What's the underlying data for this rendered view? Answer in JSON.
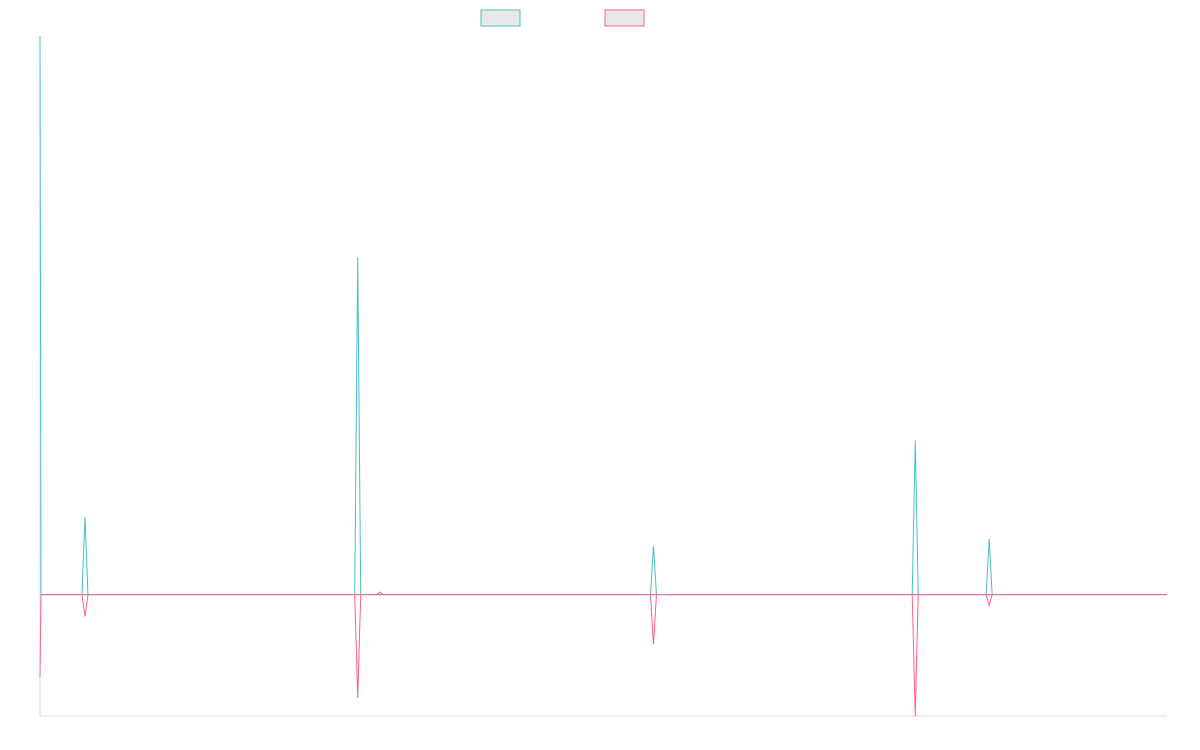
{
  "chart_data": {
    "type": "line",
    "title": "",
    "xlabel": "",
    "ylabel": "",
    "x": [
      0,
      1,
      8,
      15,
      22,
      29,
      36,
      43,
      50,
      57,
      64,
      71,
      78,
      85,
      92,
      99,
      106,
      113,
      120,
      127,
      134,
      141,
      148,
      155,
      162,
      169,
      176,
      183,
      190,
      197,
      204,
      211,
      218,
      225,
      232,
      239,
      246,
      253,
      260,
      267,
      274,
      281,
      288,
      295,
      302,
      309,
      316,
      323,
      330,
      337,
      344,
      351,
      358,
      365,
      372,
      379,
      386,
      393,
      400,
      407,
      414,
      421,
      428,
      435,
      442,
      449,
      456,
      463,
      470,
      477,
      484,
      491,
      498,
      505,
      512,
      519,
      526,
      533,
      540,
      547,
      554,
      561,
      568,
      575,
      582,
      589,
      596,
      603,
      610,
      617,
      624,
      631,
      638,
      645,
      652,
      659,
      666,
      673,
      680,
      687,
      694,
      701,
      708,
      715,
      722,
      729,
      736,
      743,
      750,
      757,
      764,
      771,
      778,
      785,
      792,
      799,
      806,
      813,
      820,
      827,
      834,
      841,
      848,
      855,
      862,
      869,
      876,
      883,
      890,
      897,
      904,
      911,
      918,
      925,
      932,
      939,
      946,
      953,
      960,
      967,
      974,
      981,
      988,
      995,
      1002,
      1009,
      1016,
      1023,
      1030,
      1037,
      1044,
      1051,
      1058,
      1065,
      1072,
      1079,
      1086,
      1093,
      1100,
      1107,
      1114,
      1121,
      1128
    ],
    "xlim": [
      0,
      1128
    ],
    "ylim": [
      -1000,
      4600
    ],
    "series": [
      {
        "color": "#4bc0c0",
        "values": [
          4600,
          0,
          0,
          0,
          0,
          0,
          0,
          0,
          0,
          0,
          0,
          0,
          0,
          0,
          0,
          0,
          0,
          0,
          0,
          0,
          0,
          0,
          0,
          0,
          0,
          0,
          0,
          0,
          0,
          0,
          0,
          0,
          0,
          0,
          0,
          0,
          0,
          0,
          0,
          0,
          0,
          0,
          0,
          0,
          0,
          0,
          0,
          0,
          0,
          0,
          0,
          0,
          0,
          0,
          0,
          0,
          0,
          0,
          0,
          0,
          0,
          0,
          0,
          0,
          0,
          0,
          0,
          0,
          0,
          0,
          0,
          0,
          0,
          0,
          0,
          0,
          0,
          0,
          0,
          0,
          0,
          0,
          0,
          0,
          0,
          0,
          0,
          0,
          0,
          0,
          0,
          0,
          0,
          0,
          0,
          0,
          0,
          0,
          0,
          0,
          0,
          0,
          0,
          0,
          0,
          0,
          0,
          0,
          0,
          0,
          0,
          0,
          0,
          0,
          0,
          0,
          0,
          0,
          0,
          0,
          0,
          0,
          0,
          0,
          0,
          0,
          0,
          0,
          0,
          0,
          0,
          0,
          0,
          0,
          0,
          0,
          0,
          0,
          0,
          0,
          0,
          0,
          0,
          0,
          0,
          0,
          0,
          0,
          0,
          0,
          0,
          0,
          0,
          0,
          0,
          0,
          0,
          0,
          0,
          0,
          0,
          0,
          0
        ]
      },
      {
        "color": "#ff6384",
        "values": [
          -680,
          0,
          0,
          0,
          0,
          0,
          0,
          0,
          0,
          0,
          0,
          0,
          0,
          0,
          0,
          0,
          0,
          0,
          0,
          0,
          0,
          0,
          0,
          0,
          0,
          0,
          0,
          0,
          0,
          0,
          0,
          0,
          0,
          0,
          0,
          0,
          0,
          0,
          0,
          0,
          0,
          0,
          0,
          0,
          0,
          0,
          0,
          0,
          0,
          0,
          0,
          0,
          0,
          0,
          0,
          0,
          0,
          0,
          0,
          0,
          0,
          0,
          0,
          0,
          0,
          0,
          0,
          0,
          0,
          0,
          0,
          0,
          0,
          0,
          0,
          0,
          0,
          0,
          0,
          0,
          0,
          0,
          0,
          0,
          0,
          0,
          0,
          0,
          0,
          0,
          0,
          0,
          0,
          0,
          0,
          0,
          0,
          0,
          0,
          0,
          0,
          0,
          0,
          0,
          0,
          0,
          0,
          0,
          0,
          0,
          0,
          0,
          0,
          0,
          0,
          0,
          0,
          0,
          0,
          0,
          0,
          0,
          0,
          0,
          0,
          0,
          0,
          0,
          0,
          0,
          0,
          0,
          0,
          0,
          0,
          0,
          0,
          0,
          0,
          0,
          0,
          0,
          0,
          0,
          0,
          0,
          0,
          0,
          0,
          0,
          0,
          0,
          0,
          0,
          0,
          0,
          0,
          0,
          0,
          0,
          0,
          0,
          0
        ]
      }
    ],
    "events": [
      {
        "x": 45,
        "teal": 640,
        "pink": -180
      },
      {
        "x": 318,
        "teal": 2780,
        "pink": -850
      },
      {
        "x": 340,
        "teal": 20,
        "pink": 20
      },
      {
        "x": 614,
        "teal": 400,
        "pink": -410
      },
      {
        "x": 876,
        "teal": 1270,
        "pink": -1000
      },
      {
        "x": 950,
        "teal": 460,
        "pink": -90
      }
    ],
    "grid": false,
    "legend": {
      "position": "top",
      "entries": [
        {
          "color": "#4bc0c0"
        },
        {
          "color": "#ff6384"
        }
      ]
    }
  }
}
